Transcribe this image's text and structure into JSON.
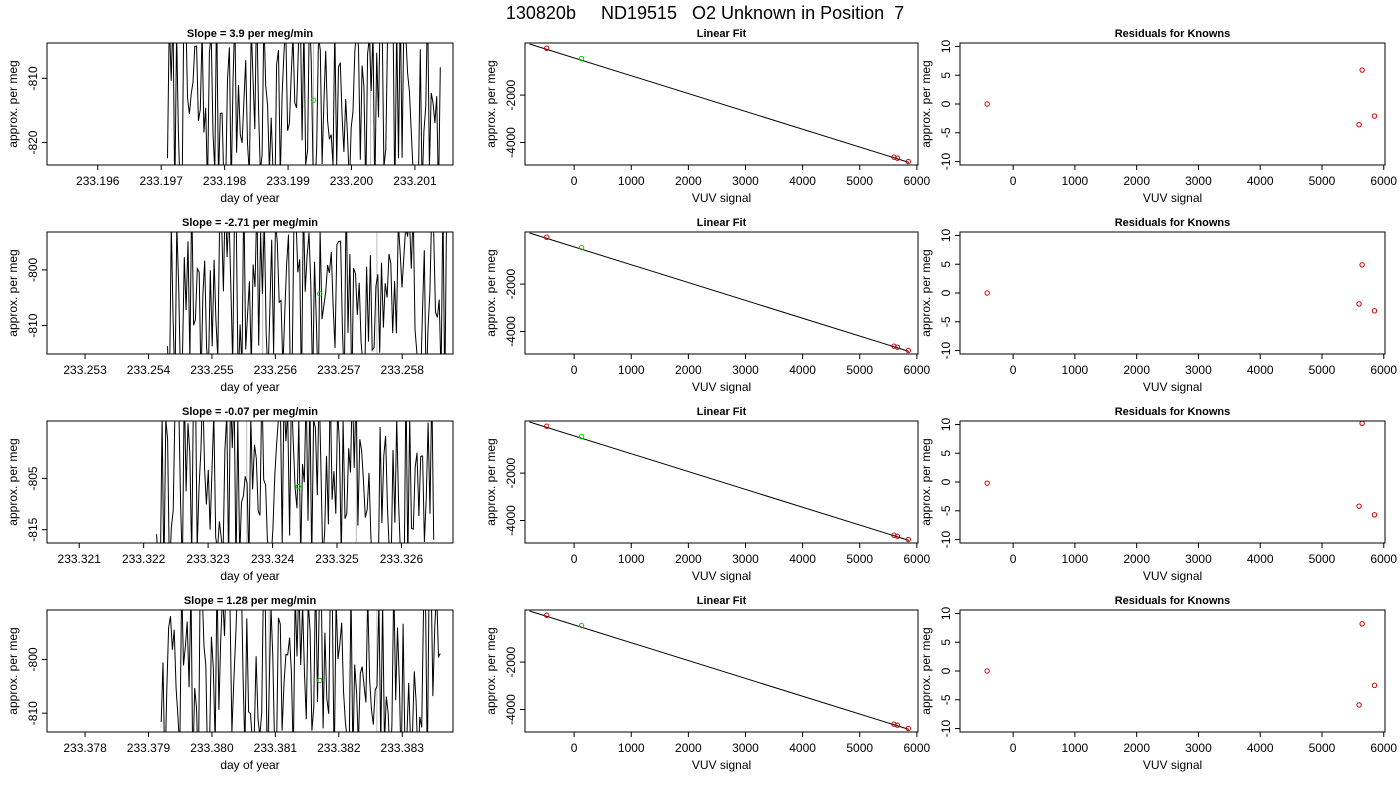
{
  "page_title": "130820b     ND19515   O2 Unknown in Position  7",
  "colors": {
    "trace": "#000000",
    "unknown": "#00cc00",
    "known": "#cc0000",
    "frame": "#000000",
    "gridline": "#bebebe"
  },
  "chart_data": [
    {
      "type": "line",
      "row": 0,
      "panel": "timeseries",
      "title": "Slope =  3.9  per meg/min",
      "xlabel": "day of year",
      "ylabel": "approx. per meg",
      "xlim": [
        233.1952,
        233.2016
      ],
      "ylim": [
        -823.5,
        -804.5
      ],
      "xticks": [
        233.196,
        233.197,
        233.198,
        233.199,
        233.2,
        233.201
      ],
      "xtick_labels": [
        "233.196",
        "233.197",
        "233.198",
        "233.199",
        "233.200",
        "233.201"
      ],
      "yticks": [
        -810,
        -820
      ],
      "ytick_labels": [
        "-810",
        "-820"
      ],
      "marker_lines_x": [
        233.1994,
        233.2003
      ],
      "unknown_point": {
        "x": 233.1994,
        "y": -813.4
      },
      "trace_x_range": [
        233.1971,
        233.2014
      ],
      "trace_seed": 7
    },
    {
      "type": "scatter",
      "row": 0,
      "panel": "fit",
      "title": "Linear Fit",
      "xlabel": "VUV signal",
      "ylabel": "approx. per meg",
      "xlim": [
        -860,
        6020
      ],
      "ylim": [
        -4950,
        200
      ],
      "xticks": [
        0,
        1000,
        2000,
        3000,
        4000,
        5000,
        6000
      ],
      "yticks": [
        -2000,
        -4000
      ],
      "fit_line": {
        "x": [
          -780,
          5860
        ],
        "y": [
          158,
          -4840
        ]
      },
      "known_points": [
        {
          "x": -480,
          "y": -22
        },
        {
          "x": 5600,
          "y": -4622
        },
        {
          "x": 5660,
          "y": -4662
        },
        {
          "x": 5850,
          "y": -4803
        }
      ],
      "unknown_point": {
        "x": 130,
        "y": -460
      }
    },
    {
      "type": "scatter",
      "row": 0,
      "panel": "residuals",
      "title": "Residuals for Knowns",
      "xlabel": "VUV signal",
      "ylabel": "approx. per meg",
      "xlim": [
        -860,
        6020
      ],
      "ylim": [
        -10.6,
        10.6
      ],
      "xticks": [
        0,
        1000,
        2000,
        3000,
        4000,
        5000,
        6000
      ],
      "yticks": [
        10,
        5,
        0,
        -5,
        -10
      ],
      "points": [
        {
          "x": -420,
          "y": 0
        },
        {
          "x": 5600,
          "y": -3.6
        },
        {
          "x": 5650,
          "y": 5.9
        },
        {
          "x": 5850,
          "y": -2.1
        }
      ]
    },
    {
      "type": "line",
      "row": 1,
      "panel": "timeseries",
      "title": "Slope =  -2.71  per meg/min",
      "xlabel": "day of year",
      "ylabel": "approx. per meg",
      "xlim": [
        233.2524,
        233.2588
      ],
      "ylim": [
        -815.1,
        -793.2
      ],
      "xticks": [
        233.253,
        233.254,
        233.255,
        233.256,
        233.257,
        233.258
      ],
      "xtick_labels": [
        "233.253",
        "233.254",
        "233.255",
        "233.256",
        "233.257",
        "233.258"
      ],
      "yticks": [
        -800,
        -810
      ],
      "ytick_labels": [
        "-800",
        "-810"
      ],
      "marker_lines_x": [
        233.2558,
        233.2576
      ],
      "unknown_point": {
        "x": 233.2567,
        "y": -804.3
      },
      "trace_x_range": [
        233.2543,
        233.2587
      ],
      "trace_seed": 19
    },
    {
      "type": "scatter",
      "row": 1,
      "panel": "fit",
      "title": "Linear Fit",
      "xlabel": "VUV signal",
      "ylabel": "approx. per meg",
      "xlim": [
        -860,
        6020
      ],
      "ylim": [
        -4950,
        200
      ],
      "xticks": [
        0,
        1000,
        2000,
        3000,
        4000,
        5000,
        6000
      ],
      "yticks": [
        -2000,
        -4000
      ],
      "fit_line": {
        "x": [
          -780,
          5860
        ],
        "y": [
          158,
          -4840
        ]
      },
      "known_points": [
        {
          "x": -480,
          "y": -22
        },
        {
          "x": 5600,
          "y": -4622
        },
        {
          "x": 5660,
          "y": -4662
        },
        {
          "x": 5850,
          "y": -4803
        }
      ],
      "unknown_point": {
        "x": 130,
        "y": -460
      }
    },
    {
      "type": "scatter",
      "row": 1,
      "panel": "residuals",
      "title": "Residuals for Knowns",
      "xlabel": "VUV signal",
      "ylabel": "approx. per meg",
      "xlim": [
        -860,
        6020
      ],
      "ylim": [
        -10.6,
        10.6
      ],
      "xticks": [
        0,
        1000,
        2000,
        3000,
        4000,
        5000,
        6000
      ],
      "yticks": [
        10,
        5,
        0,
        -5,
        -10
      ],
      "points": [
        {
          "x": -420,
          "y": 0
        },
        {
          "x": 5600,
          "y": -1.9
        },
        {
          "x": 5650,
          "y": 4.9
        },
        {
          "x": 5850,
          "y": -3.1
        }
      ]
    },
    {
      "type": "line",
      "row": 2,
      "panel": "timeseries",
      "title": "Slope =  -0.07  per meg/min",
      "xlabel": "day of year",
      "ylabel": "approx. per meg",
      "xlim": [
        233.3205,
        233.3268
      ],
      "ylim": [
        -817.6,
        -793.8
      ],
      "xticks": [
        233.321,
        233.322,
        233.323,
        233.324,
        233.325,
        233.326
      ],
      "xtick_labels": [
        "233.321",
        "233.322",
        "233.323",
        "233.324",
        "233.325",
        "233.326"
      ],
      "yticks": [
        -805,
        -815
      ],
      "ytick_labels": [
        "-805",
        "-815"
      ],
      "marker_lines_x": [
        233.3236,
        233.3253
      ],
      "unknown_point": {
        "x": 233.3244,
        "y": -806.6
      },
      "trace_x_range": [
        233.3222,
        233.3265
      ],
      "trace_seed": 31
    },
    {
      "type": "scatter",
      "row": 2,
      "panel": "fit",
      "title": "Linear Fit",
      "xlabel": "VUV signal",
      "ylabel": "approx. per meg",
      "xlim": [
        -860,
        6020
      ],
      "ylim": [
        -4950,
        200
      ],
      "xticks": [
        0,
        1000,
        2000,
        3000,
        4000,
        5000,
        6000
      ],
      "yticks": [
        -2000,
        -4000
      ],
      "fit_line": {
        "x": [
          -780,
          5860
        ],
        "y": [
          158,
          -4840
        ]
      },
      "known_points": [
        {
          "x": -480,
          "y": -22
        },
        {
          "x": 5600,
          "y": -4622
        },
        {
          "x": 5660,
          "y": -4662
        },
        {
          "x": 5850,
          "y": -4803
        }
      ],
      "unknown_point": {
        "x": 130,
        "y": -460
      }
    },
    {
      "type": "scatter",
      "row": 2,
      "panel": "residuals",
      "title": "Residuals for Knowns",
      "xlabel": "VUV signal",
      "ylabel": "approx. per meg",
      "xlim": [
        -860,
        6020
      ],
      "ylim": [
        -10.6,
        10.6
      ],
      "xticks": [
        0,
        1000,
        2000,
        3000,
        4000,
        5000,
        6000
      ],
      "yticks": [
        10,
        5,
        0,
        -5,
        -10
      ],
      "points": [
        {
          "x": -420,
          "y": -0.2
        },
        {
          "x": 5600,
          "y": -4.2
        },
        {
          "x": 5650,
          "y": 10.2
        },
        {
          "x": 5850,
          "y": -5.7
        }
      ]
    },
    {
      "type": "line",
      "row": 3,
      "panel": "timeseries",
      "title": "Slope =  1.28  per meg/min",
      "xlabel": "day of year",
      "ylabel": "approx. per meg",
      "xlim": [
        233.3774,
        233.3838
      ],
      "ylim": [
        -813.5,
        -790.8
      ],
      "xticks": [
        233.378,
        233.379,
        233.38,
        233.381,
        233.382,
        233.383
      ],
      "xtick_labels": [
        "233.378",
        "233.379",
        "233.380",
        "233.381",
        "233.382",
        "233.383"
      ],
      "yticks": [
        -800,
        -810
      ],
      "ytick_labels": [
        "-800",
        "-810"
      ],
      "marker_lines_x": [
        233.3809,
        233.3826
      ],
      "unknown_point": {
        "x": 233.3817,
        "y": -803.9
      },
      "trace_x_range": [
        233.3792,
        233.3836
      ],
      "trace_seed": 47
    },
    {
      "type": "scatter",
      "row": 3,
      "panel": "fit",
      "title": "Linear Fit",
      "xlabel": "VUV signal",
      "ylabel": "approx. per meg",
      "xlim": [
        -860,
        6020
      ],
      "ylim": [
        -4950,
        200
      ],
      "xticks": [
        0,
        1000,
        2000,
        3000,
        4000,
        5000,
        6000
      ],
      "yticks": [
        -2000,
        -4000
      ],
      "fit_line": {
        "x": [
          -780,
          5860
        ],
        "y": [
          158,
          -4840
        ]
      },
      "known_points": [
        {
          "x": -480,
          "y": -22
        },
        {
          "x": 5600,
          "y": -4622
        },
        {
          "x": 5660,
          "y": -4662
        },
        {
          "x": 5850,
          "y": -4803
        }
      ],
      "unknown_point": {
        "x": 130,
        "y": -460
      }
    },
    {
      "type": "scatter",
      "row": 3,
      "panel": "residuals",
      "title": "Residuals for Knowns",
      "xlabel": "VUV signal",
      "ylabel": "approx. per meg",
      "xlim": [
        -860,
        6020
      ],
      "ylim": [
        -10.6,
        10.6
      ],
      "xticks": [
        0,
        1000,
        2000,
        3000,
        4000,
        5000,
        6000
      ],
      "yticks": [
        10,
        5,
        0,
        -5,
        -10
      ],
      "points": [
        {
          "x": -420,
          "y": 0
        },
        {
          "x": 5600,
          "y": -5.9
        },
        {
          "x": 5650,
          "y": 8.2
        },
        {
          "x": 5850,
          "y": -2.5
        }
      ]
    }
  ]
}
